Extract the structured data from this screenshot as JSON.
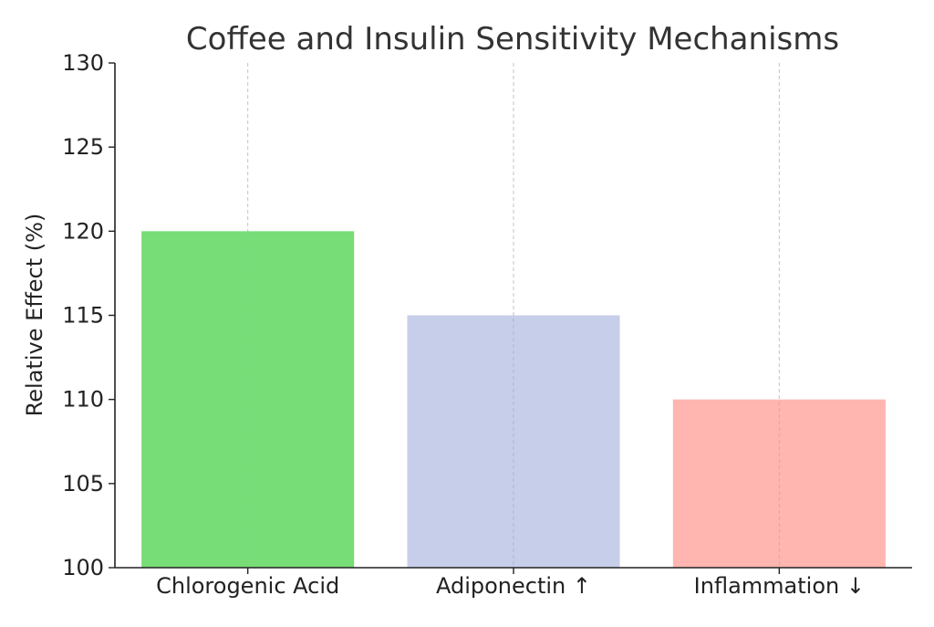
{
  "chart_data": {
    "type": "bar",
    "title": "Coffee and Insulin Sensitivity Mechanisms",
    "xlabel": "",
    "ylabel": "Relative Effect (%)",
    "categories": [
      "Chlorogenic Acid",
      "Adiponectin ↑",
      "Inflammation ↓"
    ],
    "values": [
      120,
      115,
      110
    ],
    "colors": [
      "#77dd77",
      "#c7cee9",
      "#ffb6b0"
    ],
    "ylim": [
      100,
      130
    ],
    "yticks": [
      "100",
      "105",
      "110",
      "115",
      "120",
      "125",
      "130"
    ],
    "grid": {
      "x": true,
      "y": false,
      "style": "dashed"
    },
    "legend": "none"
  }
}
